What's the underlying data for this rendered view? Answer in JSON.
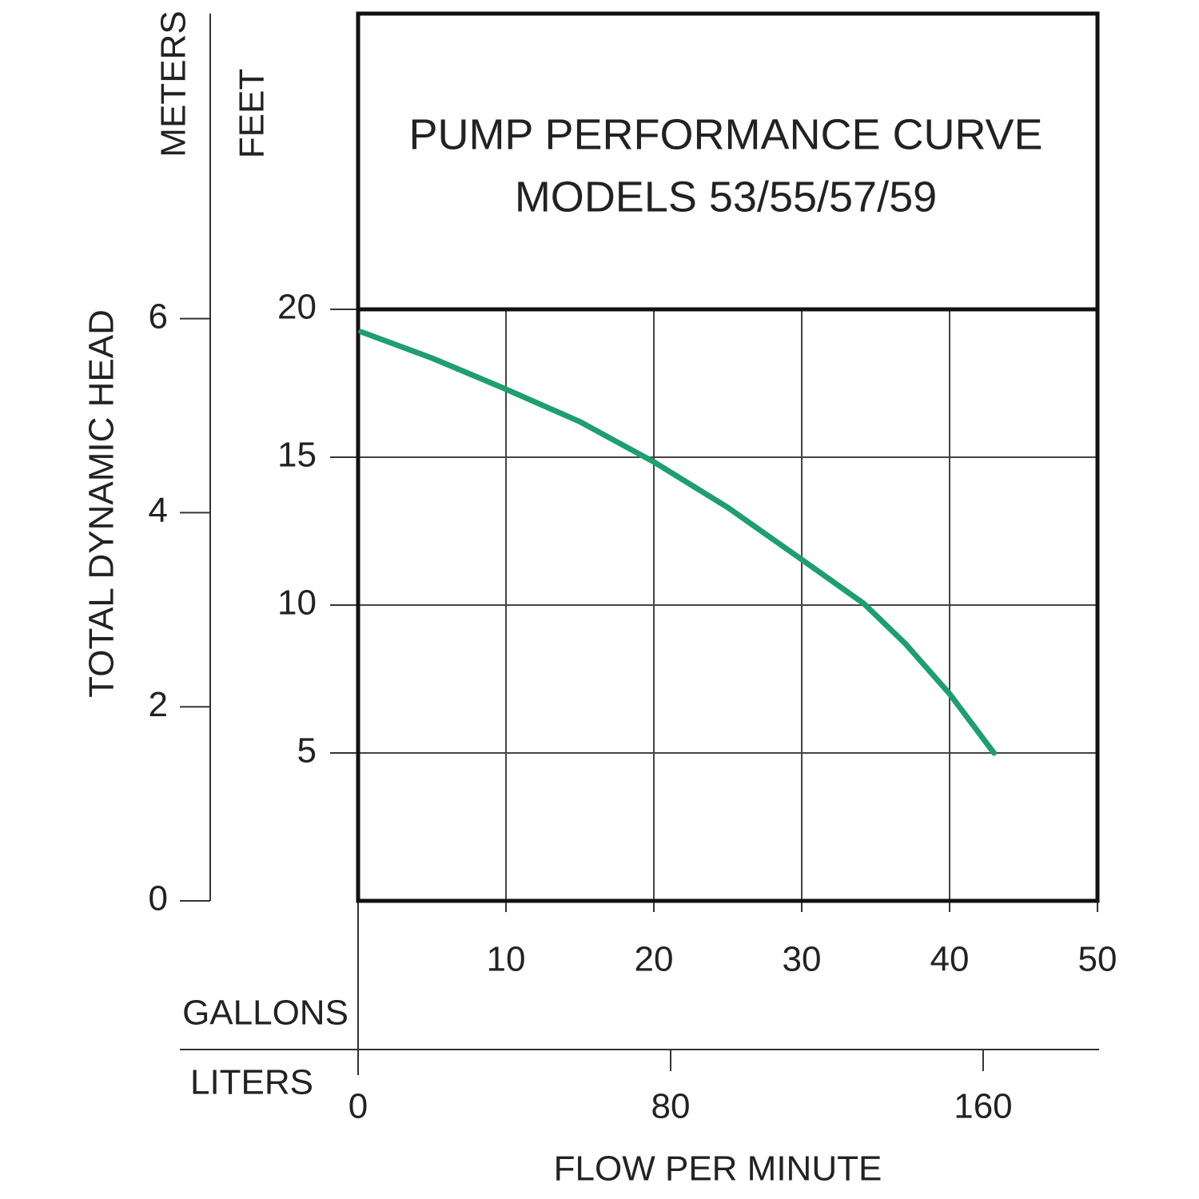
{
  "chart_data": {
    "type": "line",
    "title": [
      "PUMP PERFORMANCE CURVE",
      "MODELS 53/55/57/59"
    ],
    "y_label": "TOTAL DYNAMIC HEAD",
    "y_unit": "FEET",
    "y2_unit": "METERS",
    "x_label": "FLOW PER MINUTE",
    "x_unit": "GALLONS",
    "x2_unit": "LITERS",
    "x": [
      0.2,
      5,
      10,
      15,
      20,
      25,
      30,
      34.2,
      37,
      40,
      43
    ],
    "values": [
      19.24,
      18.35,
      17.3,
      16.2,
      14.84,
      13.3,
      11.54,
      10.05,
      8.7,
      7.0,
      5.0
    ],
    "color": "#1f9e6e",
    "xlim": [
      0,
      50
    ],
    "xticks": [
      10,
      20,
      30,
      40,
      50
    ],
    "x2lim": [
      0,
      189.27
    ],
    "x2ticks": [
      0,
      80,
      160
    ],
    "ylim": [
      0,
      20
    ],
    "yticks": [
      5,
      10,
      15,
      20
    ],
    "y2lim": [
      0,
      6.096
    ],
    "y2ticks": [
      0,
      2,
      4,
      6
    ],
    "grid": true
  }
}
